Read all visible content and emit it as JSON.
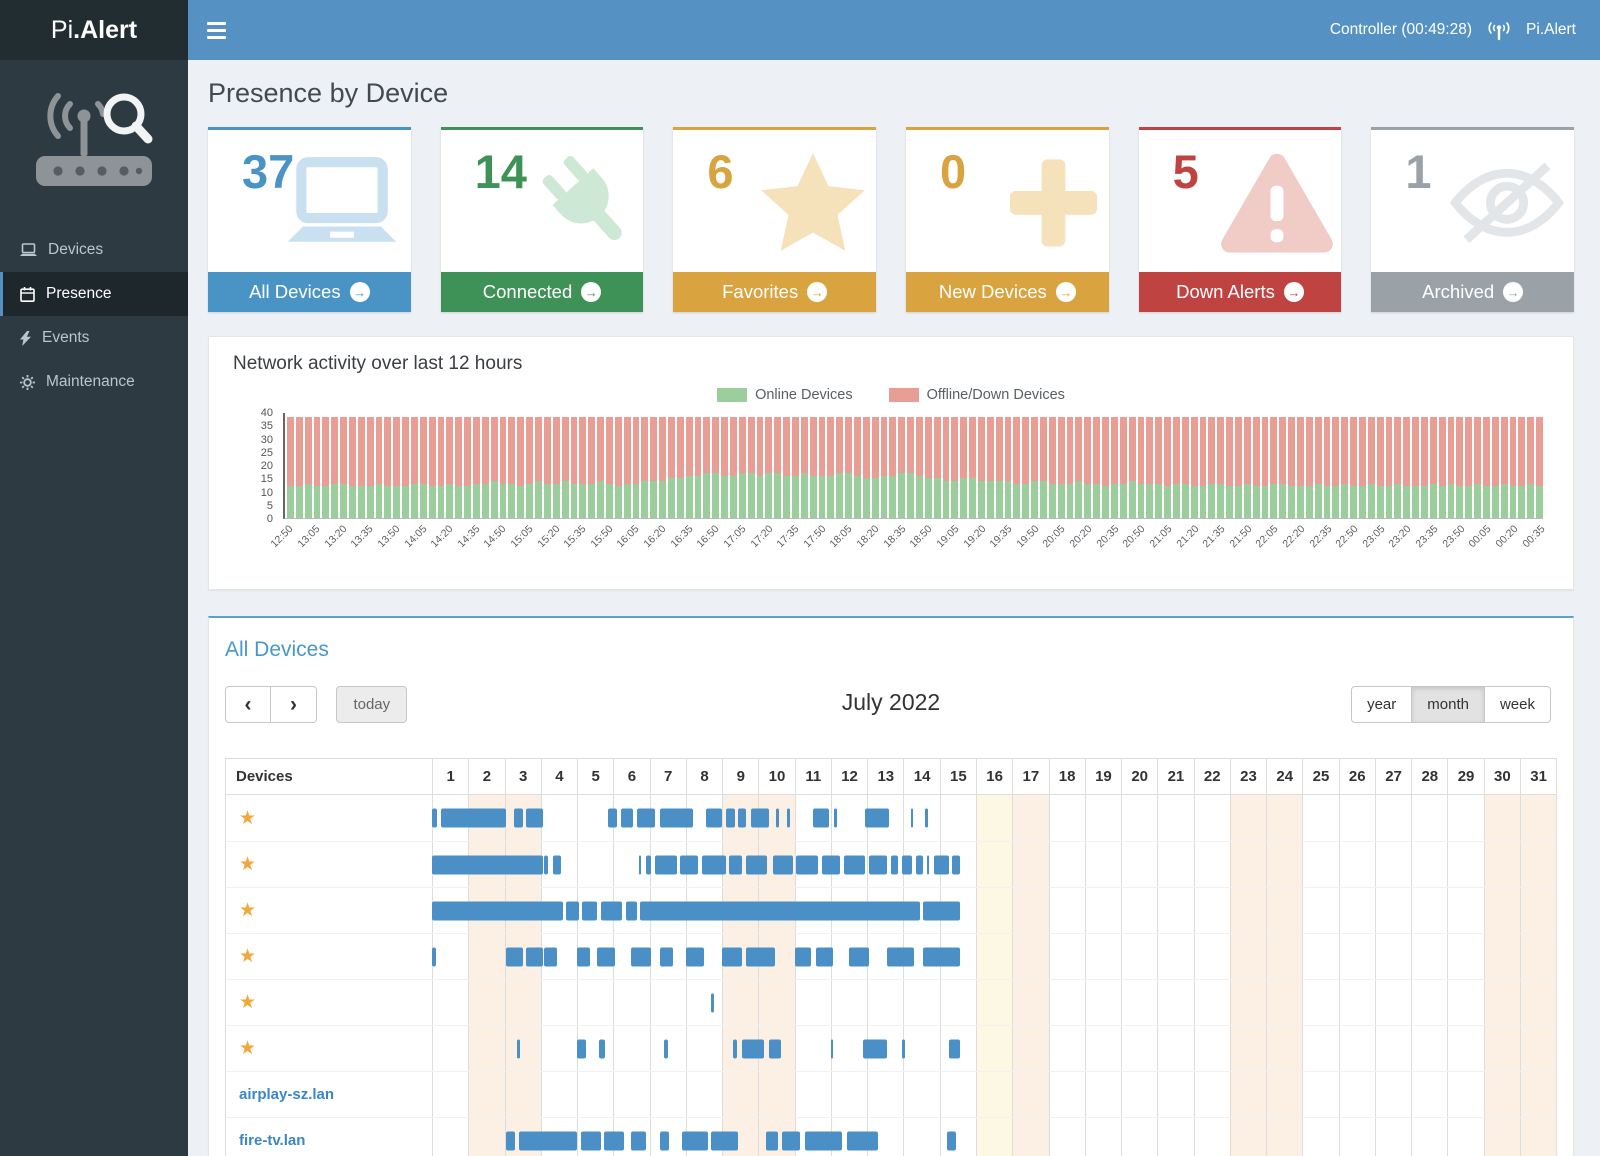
{
  "app": {
    "brand": {
      "pre": "Pi",
      "bold": ".Alert"
    },
    "navbar": {
      "controller_status": "Controller (00:49:28)",
      "user_label": "Pi.Alert"
    }
  },
  "sidebar": {
    "items": [
      {
        "label": "Devices"
      },
      {
        "label": "Presence"
      },
      {
        "label": "Events"
      },
      {
        "label": "Maintenance"
      }
    ],
    "active": "Presence"
  },
  "page": {
    "title": "Presence by Device"
  },
  "icons": {
    "arrow_circle": "→",
    "prev": "‹",
    "next": "›",
    "star": "★"
  },
  "cards": [
    {
      "value": "37",
      "label": "All Devices",
      "color": "#4a94c5",
      "icon_color": "#c8e0f0",
      "icon": "laptop-icon"
    },
    {
      "value": "14",
      "label": "Connected",
      "color": "#3f9257",
      "icon_color": "#cde8d4",
      "icon": "plug-icon"
    },
    {
      "value": "6",
      "label": "Favorites",
      "color": "#d9a43f",
      "icon_color": "#f6e2ba",
      "icon": "star-icon"
    },
    {
      "value": "0",
      "label": "New Devices",
      "color": "#d9a43f",
      "icon_color": "#f6e2ba",
      "icon": "plus-icon"
    },
    {
      "value": "5",
      "label": "Down Alerts",
      "color": "#bf4341",
      "icon_color": "#f1cbc6",
      "icon": "warning-icon"
    },
    {
      "value": "1",
      "label": "Archived",
      "color": "#9aa2a8",
      "icon_color": "#e3e6e8",
      "icon": "eye-slash-icon"
    }
  ],
  "chart_data": {
    "type": "bar",
    "stacked": true,
    "title": "Network activity over last 12 hours",
    "ylim": [
      0,
      40
    ],
    "yticks": [
      0,
      5,
      10,
      15,
      20,
      25,
      30,
      35,
      40
    ],
    "label_every": 3,
    "legend_position": "top",
    "x": [
      "12:50",
      "12:55",
      "13:00",
      "13:05",
      "13:10",
      "13:15",
      "13:20",
      "13:25",
      "13:30",
      "13:35",
      "13:40",
      "13:45",
      "13:50",
      "13:55",
      "14:00",
      "14:05",
      "14:10",
      "14:15",
      "14:20",
      "14:25",
      "14:30",
      "14:35",
      "14:40",
      "14:45",
      "14:50",
      "14:55",
      "15:00",
      "15:05",
      "15:10",
      "15:15",
      "15:20",
      "15:25",
      "15:30",
      "15:35",
      "15:40",
      "15:45",
      "15:50",
      "15:55",
      "16:00",
      "16:05",
      "16:10",
      "16:15",
      "16:20",
      "16:25",
      "16:30",
      "16:35",
      "16:40",
      "16:45",
      "16:50",
      "16:55",
      "17:00",
      "17:05",
      "17:10",
      "17:15",
      "17:20",
      "17:25",
      "17:30",
      "17:35",
      "17:40",
      "17:45",
      "17:50",
      "17:55",
      "18:00",
      "18:05",
      "18:10",
      "18:15",
      "18:20",
      "18:25",
      "18:30",
      "18:35",
      "18:40",
      "18:45",
      "18:50",
      "18:55",
      "19:00",
      "19:05",
      "19:10",
      "19:15",
      "19:20",
      "19:25",
      "19:30",
      "19:35",
      "19:40",
      "19:45",
      "19:50",
      "19:55",
      "20:00",
      "20:05",
      "20:10",
      "20:15",
      "20:20",
      "20:25",
      "20:30",
      "20:35",
      "20:40",
      "20:45",
      "20:50",
      "20:55",
      "21:00",
      "21:05",
      "21:10",
      "21:15",
      "21:20",
      "21:25",
      "21:30",
      "21:35",
      "21:40",
      "21:45",
      "21:50",
      "21:55",
      "22:00",
      "22:05",
      "22:10",
      "22:15",
      "22:20",
      "22:25",
      "22:30",
      "22:35",
      "22:40",
      "22:45",
      "22:50",
      "22:55",
      "23:00",
      "23:05",
      "23:10",
      "23:15",
      "23:20",
      "23:25",
      "23:30",
      "23:35",
      "23:40",
      "23:45",
      "23:50",
      "23:55",
      "00:00",
      "00:05",
      "00:10",
      "00:15",
      "00:20",
      "00:25",
      "00:30",
      "00:35"
    ],
    "series": [
      {
        "name": "Online Devices",
        "color": "#9bcd9d",
        "values": [
          12,
          12,
          13,
          12,
          12,
          13,
          13,
          12,
          12,
          12,
          13,
          12,
          12,
          12,
          13,
          13,
          12,
          12,
          13,
          12,
          12,
          13,
          13,
          14,
          13,
          13,
          12,
          13,
          14,
          13,
          13,
          14,
          13,
          13,
          13,
          14,
          13,
          12,
          13,
          13,
          14,
          14,
          14,
          15,
          15,
          16,
          16,
          17,
          17,
          16,
          16,
          17,
          17,
          16,
          17,
          17,
          16,
          16,
          17,
          16,
          16,
          16,
          17,
          17,
          16,
          15,
          15,
          16,
          16,
          17,
          17,
          16,
          15,
          15,
          14,
          14,
          15,
          15,
          14,
          14,
          14,
          14,
          13,
          13,
          14,
          14,
          13,
          13,
          13,
          14,
          13,
          13,
          12,
          13,
          13,
          14,
          13,
          13,
          13,
          12,
          13,
          13,
          12,
          12,
          13,
          13,
          12,
          12,
          13,
          12,
          12,
          13,
          13,
          12,
          12,
          12,
          13,
          12,
          12,
          13,
          12,
          12,
          13,
          12,
          12,
          13,
          12,
          12,
          12,
          13,
          12,
          13,
          12,
          12,
          13,
          12,
          12,
          13,
          12,
          12,
          13,
          12
        ]
      },
      {
        "name": "Offline/Down Devices",
        "color": "#e89d95",
        "values": [
          26,
          26,
          25,
          26,
          26,
          25,
          25,
          26,
          26,
          26,
          25,
          26,
          26,
          26,
          25,
          25,
          26,
          26,
          25,
          26,
          26,
          25,
          25,
          24,
          25,
          25,
          26,
          25,
          24,
          25,
          25,
          24,
          25,
          25,
          25,
          24,
          25,
          26,
          25,
          25,
          24,
          24,
          24,
          23,
          23,
          22,
          22,
          21,
          21,
          22,
          22,
          21,
          21,
          22,
          21,
          21,
          22,
          22,
          21,
          22,
          22,
          22,
          21,
          21,
          22,
          23,
          23,
          22,
          22,
          21,
          21,
          22,
          23,
          23,
          24,
          24,
          23,
          23,
          24,
          24,
          24,
          24,
          25,
          25,
          24,
          24,
          25,
          25,
          25,
          24,
          25,
          25,
          26,
          25,
          25,
          24,
          25,
          25,
          25,
          26,
          25,
          25,
          26,
          26,
          25,
          25,
          26,
          26,
          25,
          26,
          26,
          25,
          25,
          26,
          26,
          26,
          25,
          26,
          26,
          25,
          26,
          26,
          25,
          26,
          26,
          25,
          26,
          26,
          26,
          25,
          26,
          25,
          26,
          26,
          25,
          26,
          26,
          25,
          26,
          26,
          25,
          26
        ]
      }
    ]
  },
  "calendar": {
    "section_title": "All Devices",
    "toolbar": {
      "today_label": "today",
      "title": "July 2022",
      "views": [
        "year",
        "month",
        "week"
      ],
      "active_view": "month"
    },
    "bar_color": "#4a90c7",
    "grid": {
      "devices_header": "Devices",
      "days": 31,
      "weekend_days": [
        2,
        3,
        9,
        10,
        17,
        23,
        24,
        30,
        31
      ],
      "today_day": 16,
      "weekend_color": "#fbf0e3",
      "today_color": "#fcf8e3"
    },
    "rows": [
      {
        "starred": true,
        "name": "",
        "segments": [
          [
            1,
            1.15
          ],
          [
            1.25,
            3.05
          ],
          [
            3.25,
            3.5
          ],
          [
            3.6,
            4.05
          ],
          [
            5.85,
            6.1
          ],
          [
            6.2,
            6.55
          ],
          [
            6.65,
            7.15
          ],
          [
            7.3,
            8.2
          ],
          [
            8.55,
            9.0
          ],
          [
            9.1,
            9.35
          ],
          [
            9.45,
            9.65
          ],
          [
            9.8,
            10.3
          ],
          [
            10.5,
            10.56
          ],
          [
            10.8,
            10.86
          ],
          [
            11.5,
            11.95
          ],
          [
            12.1,
            12.16
          ],
          [
            12.95,
            13.6
          ],
          [
            14.2,
            14.27
          ],
          [
            14.6,
            14.67
          ]
        ]
      },
      {
        "starred": true,
        "name": "",
        "segments": [
          [
            1,
            4.05
          ],
          [
            4.1,
            4.2
          ],
          [
            4.35,
            4.55
          ],
          [
            6.7,
            6.76
          ],
          [
            6.9,
            7.05
          ],
          [
            7.15,
            7.75
          ],
          [
            7.85,
            8.35
          ],
          [
            8.45,
            9.1
          ],
          [
            9.2,
            9.55
          ],
          [
            9.65,
            10.25
          ],
          [
            10.4,
            10.95
          ],
          [
            11.05,
            11.65
          ],
          [
            11.75,
            12.25
          ],
          [
            12.35,
            12.95
          ],
          [
            13.05,
            13.55
          ],
          [
            13.65,
            13.85
          ],
          [
            13.95,
            14.25
          ],
          [
            14.35,
            14.55
          ],
          [
            14.65,
            14.72
          ],
          [
            14.85,
            15.25
          ],
          [
            15.35,
            15.55
          ]
        ]
      },
      {
        "starred": true,
        "name": "",
        "segments": [
          [
            1,
            4.6
          ],
          [
            4.7,
            5.05
          ],
          [
            5.15,
            5.55
          ],
          [
            5.65,
            6.25
          ],
          [
            6.35,
            6.65
          ],
          [
            6.75,
            14.45
          ],
          [
            14.55,
            15.55
          ]
        ]
      },
      {
        "starred": true,
        "name": "",
        "segments": [
          [
            1,
            1.12
          ],
          [
            3.05,
            3.5
          ],
          [
            3.6,
            4.05
          ],
          [
            4.1,
            4.45
          ],
          [
            5.0,
            5.35
          ],
          [
            5.55,
            6.05
          ],
          [
            6.5,
            7.05
          ],
          [
            7.3,
            7.65
          ],
          [
            8.0,
            8.5
          ],
          [
            9.0,
            9.55
          ],
          [
            9.65,
            10.45
          ],
          [
            11.0,
            11.45
          ],
          [
            11.6,
            12.05
          ],
          [
            12.5,
            13.05
          ],
          [
            13.55,
            14.3
          ],
          [
            14.55,
            15.55
          ]
        ]
      },
      {
        "starred": true,
        "name": "",
        "segments": [
          [
            8.7,
            8.78
          ]
        ]
      },
      {
        "starred": true,
        "name": "",
        "segments": [
          [
            3.35,
            3.42
          ],
          [
            5.0,
            5.25
          ],
          [
            5.6,
            5.78
          ],
          [
            7.4,
            7.52
          ],
          [
            9.3,
            9.42
          ],
          [
            9.55,
            10.15
          ],
          [
            10.3,
            10.62
          ],
          [
            12.0,
            12.07
          ],
          [
            12.9,
            13.55
          ],
          [
            13.95,
            14.05
          ],
          [
            15.25,
            15.55
          ]
        ]
      },
      {
        "starred": false,
        "name": "airplay-sz.lan",
        "segments": []
      },
      {
        "starred": false,
        "name": "fire-tv.lan",
        "segments": [
          [
            3.05,
            3.3
          ],
          [
            3.4,
            5.0
          ],
          [
            5.1,
            5.65
          ],
          [
            5.75,
            6.3
          ],
          [
            6.5,
            6.9
          ],
          [
            7.3,
            7.55
          ],
          [
            7.9,
            8.6
          ],
          [
            8.7,
            9.45
          ],
          [
            10.2,
            10.55
          ],
          [
            10.65,
            11.15
          ],
          [
            11.3,
            12.3
          ],
          [
            12.45,
            13.3
          ],
          [
            15.2,
            15.45
          ]
        ]
      }
    ]
  }
}
